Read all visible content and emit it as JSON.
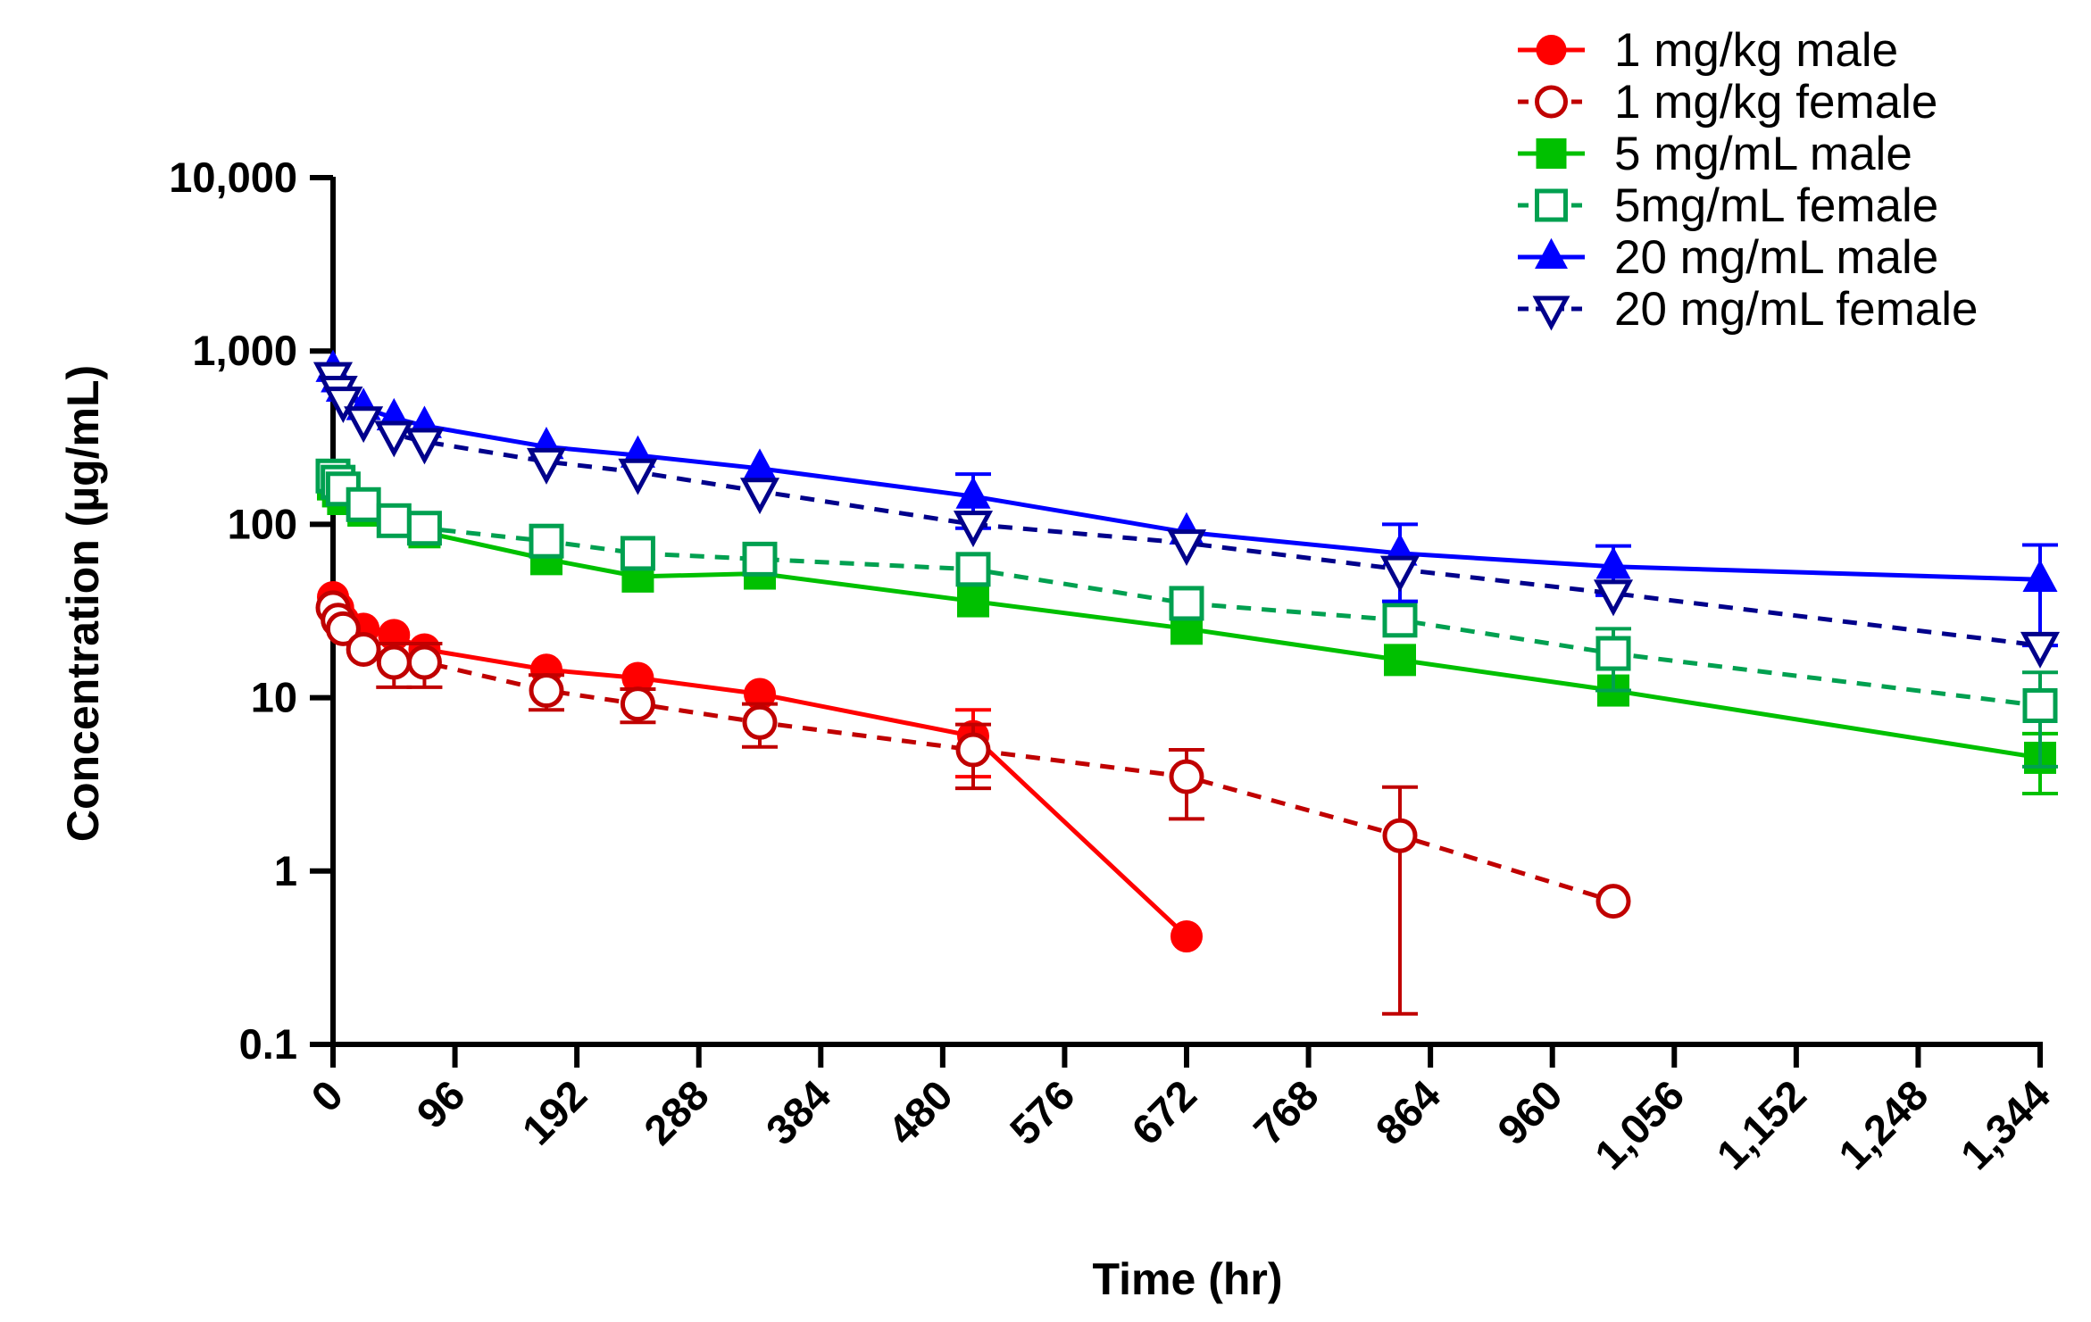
{
  "chart_data": {
    "type": "line",
    "title": "",
    "xlabel": "Time (hr)",
    "ylabel": "Concentration (µg/mL)",
    "xlim": [
      0,
      1344
    ],
    "ylim": [
      0.1,
      10000
    ],
    "yscale": "log",
    "xticks": [
      0,
      96,
      192,
      288,
      384,
      480,
      576,
      672,
      768,
      864,
      960,
      1056,
      1152,
      1248,
      1344
    ],
    "xtick_labels": [
      "0",
      "96",
      "192",
      "288",
      "384",
      "480",
      "576",
      "672",
      "768",
      "864",
      "960",
      "1,056",
      "1,152",
      "1,248",
      "1,344"
    ],
    "yticks": [
      0.1,
      1,
      10,
      100,
      1000,
      10000
    ],
    "ytick_labels": [
      "0.1",
      "1",
      "10",
      "100",
      "1,000",
      "10,000"
    ],
    "legend_position": "top-right",
    "series": [
      {
        "name": "1 mg/kg male",
        "color": "#ff0000",
        "marker": "circle-filled",
        "line": "solid",
        "x": [
          0,
          4,
          8,
          24,
          48,
          72,
          168,
          240,
          336,
          504,
          672
        ],
        "y": [
          38,
          33,
          28,
          25,
          23,
          19,
          14.5,
          13,
          10.5,
          6,
          0.42
        ],
        "err": [
          0,
          0,
          0,
          0,
          0,
          0,
          0,
          0,
          0,
          2.5,
          0
        ]
      },
      {
        "name": "1 mg/kg female",
        "color": "#c00000",
        "marker": "circle-open",
        "line": "dashed",
        "x": [
          0,
          4,
          8,
          24,
          48,
          72,
          168,
          240,
          336,
          504,
          672,
          840,
          1008
        ],
        "y": [
          33,
          28,
          25,
          19,
          16,
          16,
          11,
          9.2,
          7.2,
          5,
          3.5,
          1.6,
          0.67
        ],
        "err": [
          0,
          0,
          0,
          0,
          4.5,
          4.5,
          2.5,
          2,
          2,
          2,
          1.5,
          1.45,
          0
        ]
      },
      {
        "name": "5 mg/mL male",
        "color": "#00c000",
        "marker": "square-filled",
        "line": "solid",
        "x": [
          0,
          4,
          8,
          24,
          48,
          72,
          168,
          240,
          336,
          504,
          672,
          840,
          1008,
          1344
        ],
        "y": [
          170,
          155,
          140,
          120,
          105,
          90,
          63,
          50,
          52,
          36,
          25,
          16.5,
          11,
          4.5
        ],
        "err": [
          0,
          0,
          0,
          0,
          0,
          0,
          0,
          0,
          0,
          0,
          0,
          0,
          0,
          1.7
        ]
      },
      {
        "name": "5mg/mL female",
        "color": "#00a050",
        "marker": "square-open",
        "line": "dashed",
        "x": [
          0,
          4,
          8,
          24,
          48,
          72,
          168,
          240,
          336,
          504,
          672,
          840,
          1008,
          1344
        ],
        "y": [
          190,
          175,
          160,
          130,
          105,
          95,
          80,
          68,
          63,
          55,
          35,
          28,
          18,
          9
        ],
        "err": [
          0,
          0,
          0,
          0,
          0,
          0,
          0,
          0,
          0,
          0,
          0,
          0,
          7,
          5
        ]
      },
      {
        "name": "20 mg/mL male",
        "color": "#0000ff",
        "marker": "triangle-filled",
        "line": "solid",
        "x": [
          0,
          4,
          8,
          24,
          48,
          72,
          168,
          240,
          336,
          504,
          672,
          840,
          1008,
          1344
        ],
        "y": [
          780,
          680,
          600,
          470,
          410,
          370,
          280,
          250,
          210,
          145,
          90,
          68,
          57,
          48
        ],
        "err": [
          0,
          0,
          0,
          0,
          0,
          0,
          0,
          0,
          0,
          50,
          0,
          32,
          18,
          28
        ]
      },
      {
        "name": "20 mg/mL female",
        "color": "#00008b",
        "marker": "triangle-open",
        "line": "dashed",
        "x": [
          0,
          4,
          8,
          24,
          48,
          72,
          168,
          240,
          336,
          504,
          672,
          840,
          1008,
          1344
        ],
        "y": [
          720,
          600,
          520,
          400,
          330,
          300,
          230,
          200,
          155,
          100,
          78,
          55,
          40,
          20
        ],
        "err": [
          0,
          0,
          0,
          0,
          0,
          0,
          0,
          0,
          0,
          0,
          0,
          0,
          0,
          0
        ]
      }
    ]
  }
}
